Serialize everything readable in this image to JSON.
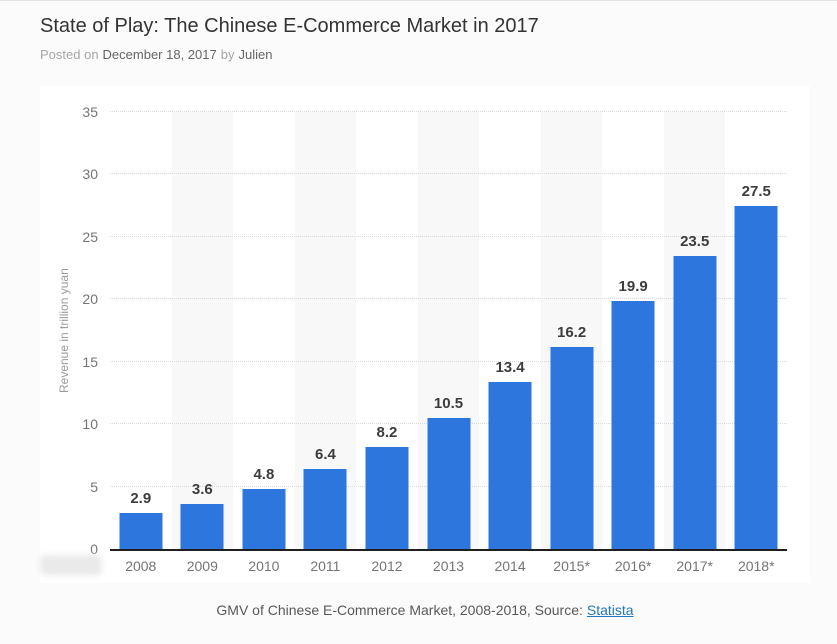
{
  "page": {
    "title": "State of Play: The Chinese E-Commerce Market in 2017",
    "byline": {
      "prefix": "Posted on",
      "date": "December 18, 2017",
      "connector": "by",
      "author": "Julien"
    }
  },
  "chart_data": {
    "type": "bar",
    "title": "",
    "categories": [
      "2008",
      "2009",
      "2010",
      "2011",
      "2012",
      "2013",
      "2014",
      "2015*",
      "2016*",
      "2017*",
      "2018*"
    ],
    "values": [
      2.9,
      3.6,
      4.8,
      6.4,
      8.2,
      10.5,
      13.4,
      16.2,
      19.9,
      23.5,
      27.5
    ],
    "xlabel": "",
    "ylabel": "Revenue in trillion yuan",
    "ylim": [
      0,
      35
    ],
    "yticks": [
      0,
      5,
      10,
      15,
      20,
      25,
      30,
      35
    ],
    "grid": "horizontal-dotted",
    "legend": "none",
    "bar_color": "#2d76dd",
    "stripe_color": "#f8f8f8",
    "value_label_color": "#3c3c3c"
  },
  "caption": {
    "text": "GMV of Chinese E-Commerce Market, 2008-2018, Source:",
    "link_label": "Statista"
  }
}
